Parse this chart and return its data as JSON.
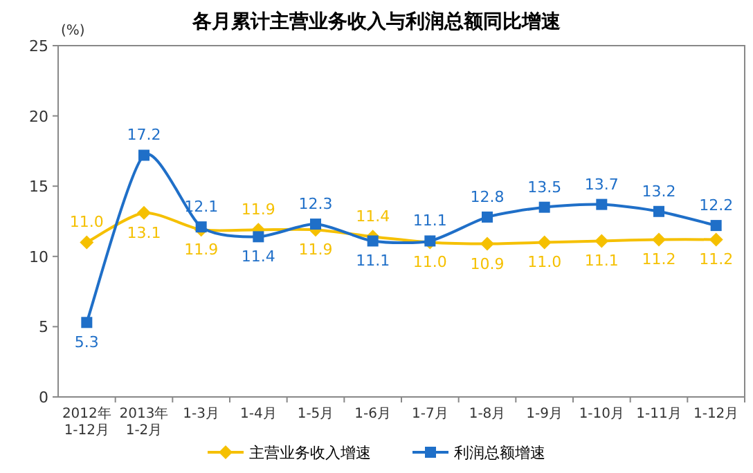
{
  "chart_data": {
    "type": "line",
    "title": "各月累计主营业务收入与利润总额同比增速",
    "ylabel": "(%)",
    "categories": [
      "2012年\n1-12月",
      "2013年\n1-2月",
      "1-3月",
      "1-4月",
      "1-5月",
      "1-6月",
      "1-7月",
      "1-8月",
      "1-9月",
      "1-10月",
      "1-11月",
      "1-12月"
    ],
    "series": [
      {
        "name": "主营业务收入增速",
        "color": "#f5c000",
        "marker": "diamond",
        "values": [
          11.0,
          13.1,
          11.9,
          11.9,
          11.9,
          11.4,
          11.0,
          10.9,
          11.0,
          11.1,
          11.2,
          11.2
        ],
        "value_labels": [
          "11.0",
          "13.1",
          "11.9",
          "11.9",
          "11.9",
          "11.4",
          "11.0",
          "10.9",
          "11.0",
          "11.1",
          "11.2",
          "11.2"
        ]
      },
      {
        "name": "利润总额增速",
        "color": "#1f6fc8",
        "marker": "square",
        "values": [
          5.3,
          17.2,
          12.1,
          11.4,
          12.3,
          11.1,
          11.1,
          12.8,
          13.5,
          13.7,
          13.2,
          12.2
        ],
        "value_labels": [
          "5.3",
          "17.2",
          "12.1",
          "11.4",
          "12.3",
          "11.1",
          "11.1",
          "12.8",
          "13.5",
          "13.7",
          "13.2",
          "12.2"
        ]
      }
    ],
    "ylim": [
      0,
      25
    ],
    "yticks": [
      0,
      5,
      10,
      15,
      20,
      25
    ],
    "grid": false,
    "legend": "bottom"
  }
}
